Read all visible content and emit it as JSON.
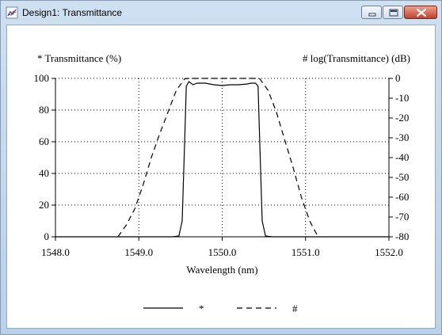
{
  "window": {
    "title": "Design1: Transmittance",
    "icon": "chart-icon",
    "controls": {
      "minimize": "minimize-icon",
      "maximize": "maximize-icon",
      "close": "close-icon"
    }
  },
  "colors": {
    "titlebar": "#c3d8ee",
    "plot_line": "#000000",
    "grid": "#000000"
  },
  "chart_data": {
    "type": "line",
    "title": "",
    "xlabel": "Wavelength (nm)",
    "ylabel_left": "* Transmittance (%)",
    "ylabel_right": "# log(Transmittance) (dB)",
    "xlim": [
      1548.0,
      1552.0
    ],
    "ylim_left": [
      0,
      100
    ],
    "ylim_right": [
      -80,
      0
    ],
    "xticks": [
      "1548.0",
      "1549.0",
      "1550.0",
      "1551.0",
      "1552.0"
    ],
    "yticks_left": [
      "0",
      "20",
      "40",
      "60",
      "80",
      "100"
    ],
    "yticks_right": [
      "0",
      "-10",
      "-20",
      "-30",
      "-40",
      "-50",
      "-60",
      "-70",
      "-80"
    ],
    "grid": true,
    "grid_style": "dotted",
    "legend_placement": "bottom",
    "series": [
      {
        "name": "*",
        "axis": "left",
        "style": "solid",
        "x": [
          1548.0,
          1549.4,
          1549.48,
          1549.52,
          1549.55,
          1549.57,
          1549.6,
          1549.65,
          1549.7,
          1549.8,
          1549.9,
          1550.0,
          1550.1,
          1550.2,
          1550.3,
          1550.35,
          1550.4,
          1550.43,
          1550.45,
          1550.48,
          1550.52,
          1550.6,
          1552.0
        ],
        "y": [
          0,
          0,
          0.5,
          10,
          60,
          95,
          98,
          96,
          97,
          97,
          96,
          95.5,
          96,
          96,
          96.5,
          97,
          97,
          95,
          60,
          10,
          0.5,
          0,
          0
        ]
      },
      {
        "name": "#",
        "axis": "right",
        "style": "dashed",
        "x": [
          1548.75,
          1548.85,
          1548.95,
          1549.05,
          1549.15,
          1549.25,
          1549.35,
          1549.45,
          1549.55,
          1549.6,
          1550.0,
          1550.4,
          1550.45,
          1550.55,
          1550.65,
          1550.75,
          1550.85,
          1550.95,
          1551.05,
          1551.15
        ],
        "y": [
          -80,
          -74,
          -66,
          -54,
          -40,
          -28,
          -17,
          -6,
          -0.2,
          0,
          0,
          0,
          -0.2,
          -6,
          -17,
          -31,
          -45,
          -60,
          -72,
          -80
        ]
      }
    ]
  }
}
